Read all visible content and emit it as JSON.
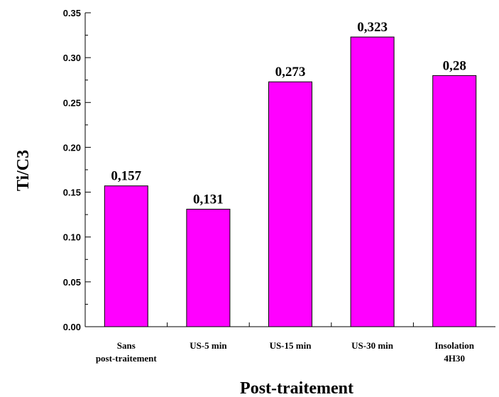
{
  "chart_data": {
    "type": "bar",
    "categories": [
      [
        "Sans",
        "post-traitement"
      ],
      [
        "US-5 min"
      ],
      [
        "US-15 min"
      ],
      [
        "US-30 min"
      ],
      [
        "Insolation",
        "4H30"
      ]
    ],
    "values": [
      0.157,
      0.131,
      0.273,
      0.323,
      0.28
    ],
    "data_labels": [
      "0,157",
      "0,131",
      "0,273",
      "0,323",
      "0,28"
    ],
    "xlabel": "Post-traitement",
    "ylabel": "Ti/C3",
    "ylim": [
      0,
      0.35
    ],
    "yticks": [
      "0.00",
      "0.05",
      "0.10",
      "0.15",
      "0.20",
      "0.25",
      "0.30",
      "0.35"
    ],
    "grid": false,
    "legend": "none",
    "bar_color": "#ff00ff",
    "bar_edge_color": "#000000"
  }
}
